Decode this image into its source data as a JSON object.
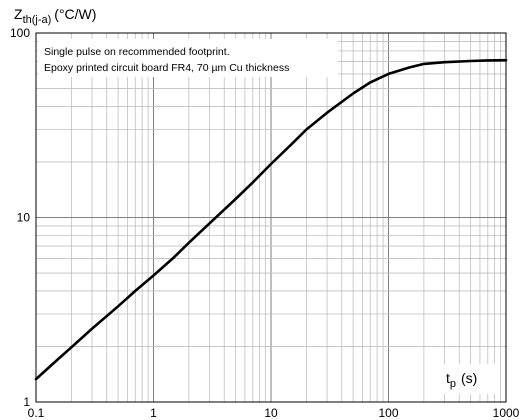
{
  "chart_data": {
    "type": "line",
    "title": "",
    "ylabel": {
      "main": "Z",
      "sub": "th(j-a)",
      "unit": "(°C/W)"
    },
    "xlabel": {
      "main": "t",
      "sub": "p",
      "unit": "(s)"
    },
    "xscale": "log",
    "yscale": "log",
    "xlim": [
      0.1,
      1000
    ],
    "ylim": [
      1,
      100
    ],
    "x_tick_labels": [
      "0.1",
      "1",
      "10",
      "100",
      "1000"
    ],
    "y_tick_labels": [
      "1",
      "10",
      "100"
    ],
    "grid": true,
    "annotation": [
      "Single pulse on recommended footprint.",
      "Epoxy printed circuit board FR4, 70 µm Cu thickness"
    ],
    "series": [
      {
        "x": [
          0.1,
          0.15,
          0.2,
          0.3,
          0.5,
          0.7,
          1,
          1.5,
          2,
          3,
          5,
          7,
          10,
          15,
          20,
          30,
          50,
          70,
          100,
          150,
          200,
          300,
          500,
          700,
          1000
        ],
        "y": [
          1.33,
          1.68,
          1.98,
          2.5,
          3.3,
          4.0,
          4.85,
          6.1,
          7.3,
          9.3,
          12.6,
          15.5,
          19.5,
          25,
          30,
          37,
          47,
          54,
          60,
          65,
          68,
          69.5,
          70.5,
          71,
          71.2
        ]
      }
    ],
    "colors": {
      "line": "#000000",
      "grid": "#bfbfbf",
      "frame": "#000000"
    }
  }
}
